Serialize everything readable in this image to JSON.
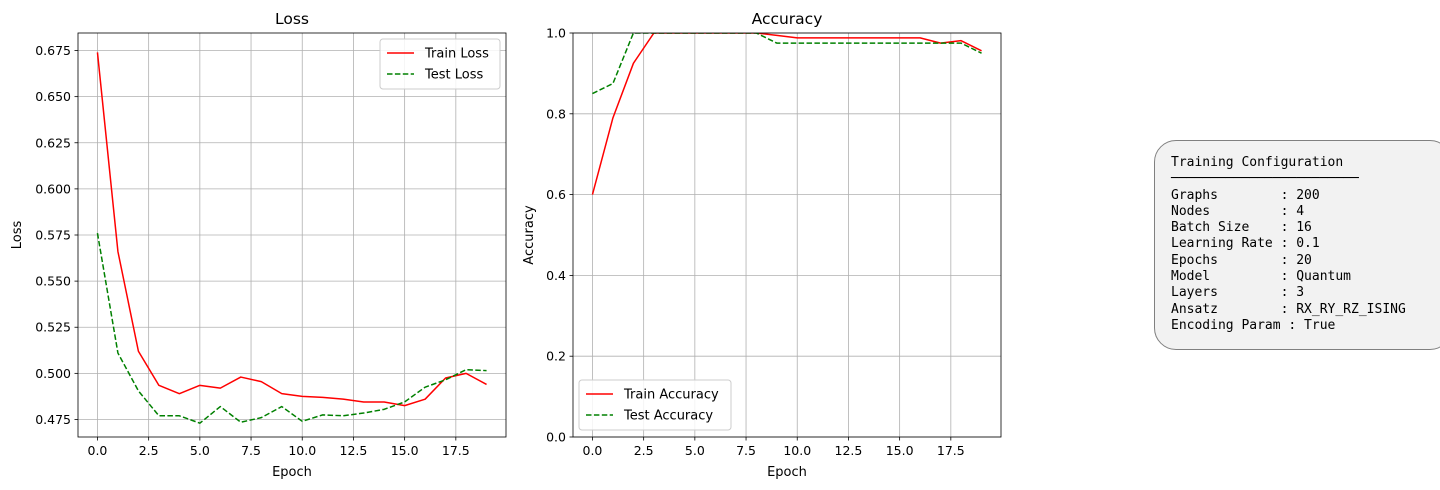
{
  "colors": {
    "train": "#ff0000",
    "test": "#008000",
    "grid": "#b0b0b0",
    "axes": "#000000"
  },
  "chart_data": [
    {
      "type": "line",
      "title": "Loss",
      "xlabel": "Epoch",
      "ylabel": "Loss",
      "xlim": [
        -0.95,
        19.95
      ],
      "ylim": [
        0.4655,
        0.6845
      ],
      "xticks": [
        0.0,
        2.5,
        5.0,
        7.5,
        10.0,
        12.5,
        15.0,
        17.5
      ],
      "xtick_labels": [
        "0.0",
        "2.5",
        "5.0",
        "7.5",
        "10.0",
        "12.5",
        "15.0",
        "17.5"
      ],
      "yticks": [
        0.475,
        0.5,
        0.525,
        0.55,
        0.575,
        0.6,
        0.625,
        0.65,
        0.675
      ],
      "ytick_labels": [
        "0.475",
        "0.500",
        "0.525",
        "0.550",
        "0.575",
        "0.600",
        "0.625",
        "0.650",
        "0.675"
      ],
      "grid": true,
      "legend": "top-right",
      "x": [
        0,
        1,
        2,
        3,
        4,
        5,
        6,
        7,
        8,
        9,
        10,
        11,
        12,
        13,
        14,
        15,
        16,
        17,
        18,
        19
      ],
      "series": [
        {
          "name": "Train Loss",
          "style": "solid",
          "color": "#ff0000",
          "values": [
            0.674,
            0.566,
            0.512,
            0.4935,
            0.489,
            0.4935,
            0.492,
            0.498,
            0.4955,
            0.489,
            0.4875,
            0.487,
            0.486,
            0.4845,
            0.4845,
            0.4825,
            0.486,
            0.4975,
            0.5,
            0.494
          ]
        },
        {
          "name": "Test Loss",
          "style": "dashed",
          "color": "#008000",
          "values": [
            0.576,
            0.511,
            0.4905,
            0.477,
            0.477,
            0.473,
            0.482,
            0.4735,
            0.476,
            0.482,
            0.474,
            0.4775,
            0.477,
            0.4785,
            0.4805,
            0.4845,
            0.4925,
            0.4965,
            0.502,
            0.5015
          ]
        }
      ]
    },
    {
      "type": "line",
      "title": "Accuracy",
      "xlabel": "Epoch",
      "ylabel": "Accuracy",
      "xlim": [
        -0.95,
        19.95
      ],
      "ylim": [
        0,
        1
      ],
      "xticks": [
        0.0,
        2.5,
        5.0,
        7.5,
        10.0,
        12.5,
        15.0,
        17.5
      ],
      "xtick_labels": [
        "0.0",
        "2.5",
        "5.0",
        "7.5",
        "10.0",
        "12.5",
        "15.0",
        "17.5"
      ],
      "yticks": [
        0.0,
        0.2,
        0.4,
        0.6,
        0.8,
        1.0
      ],
      "ytick_labels": [
        "0.0",
        "0.2",
        "0.4",
        "0.6",
        "0.8",
        "1.0"
      ],
      "grid": true,
      "legend": "bottom-left",
      "x": [
        0,
        1,
        2,
        3,
        4,
        5,
        6,
        7,
        8,
        9,
        10,
        11,
        12,
        13,
        14,
        15,
        16,
        17,
        18,
        19
      ],
      "series": [
        {
          "name": "Train Accuracy",
          "style": "solid",
          "color": "#ff0000",
          "values": [
            0.6,
            0.79,
            0.925,
            1.0,
            1.0,
            1.0,
            1.0,
            1.0,
            1.0,
            0.994,
            0.988,
            0.988,
            0.988,
            0.988,
            0.988,
            0.988,
            0.988,
            0.975,
            0.981,
            0.956
          ]
        },
        {
          "name": "Test Accuracy",
          "style": "dashed",
          "color": "#008000",
          "values": [
            0.85,
            0.875,
            1.0,
            1.0,
            1.0,
            1.0,
            1.0,
            1.0,
            1.0,
            0.975,
            0.975,
            0.975,
            0.975,
            0.975,
            0.975,
            0.975,
            0.975,
            0.975,
            0.975,
            0.95
          ]
        }
      ]
    }
  ],
  "config": {
    "title": "Training Configuration",
    "rule": "────────────────────────",
    "rows": [
      "Graphs        : 200",
      "Nodes         : 4",
      "Batch Size    : 16",
      "Learning Rate : 0.1",
      "Epochs        : 20",
      "Model         : Quantum",
      "Layers        : 3",
      "Ansatz        : RX_RY_RZ_ISING",
      "Encoding Param : True"
    ]
  }
}
